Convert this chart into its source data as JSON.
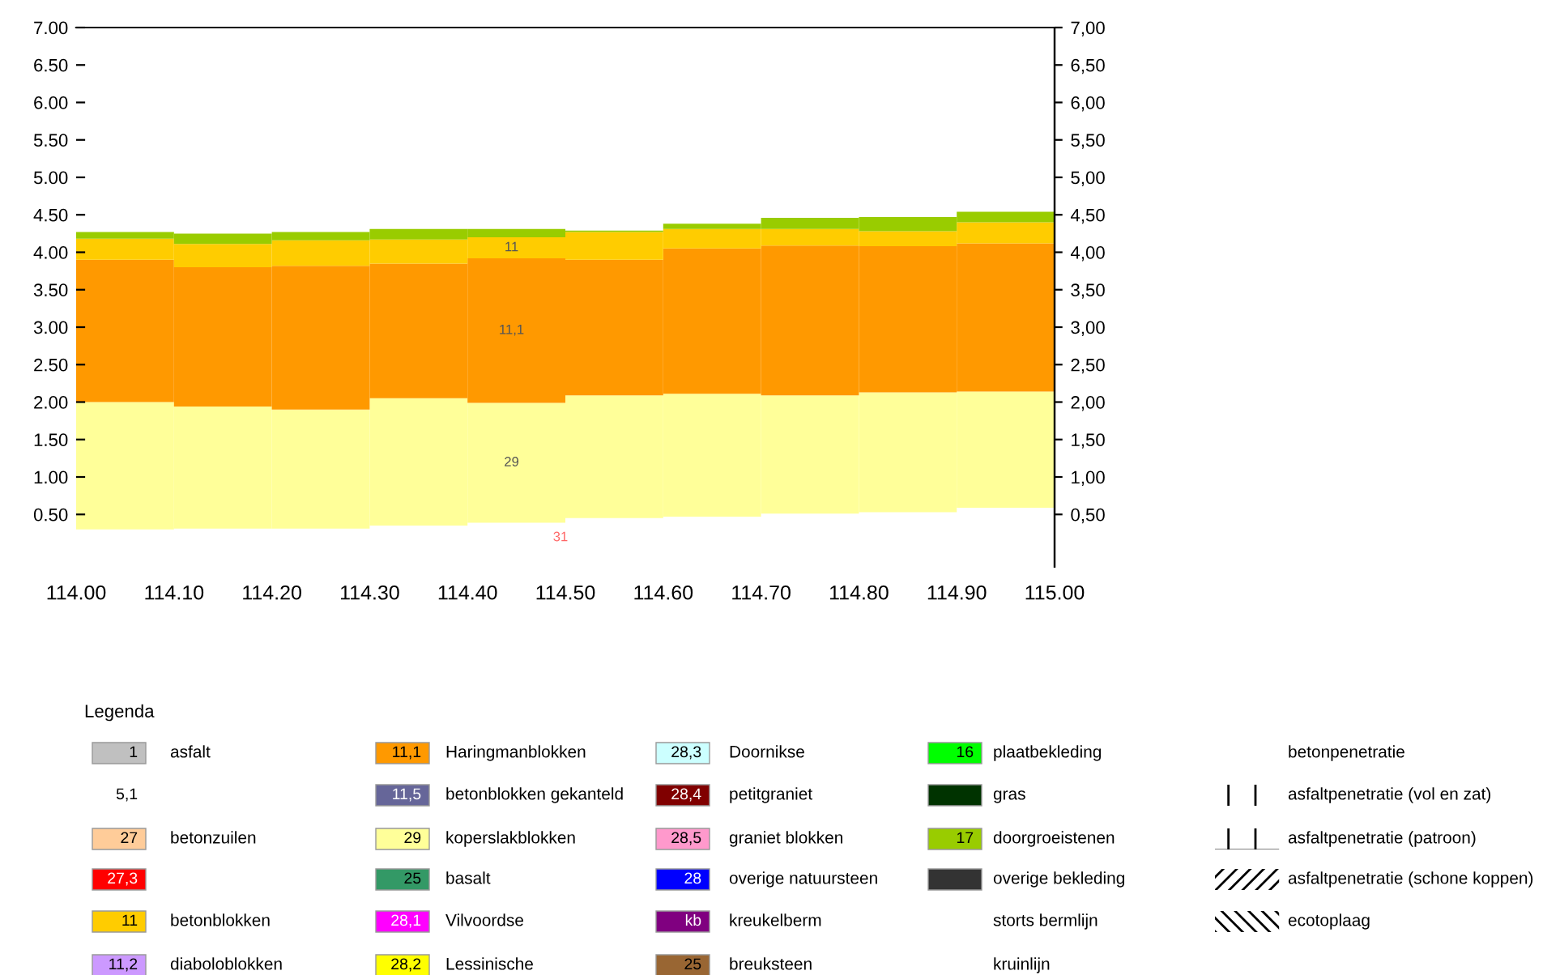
{
  "chart_data": {
    "type": "bar",
    "legend_title": "Legenda",
    "x": [
      114.05,
      114.15,
      114.25,
      114.35,
      114.45,
      114.55,
      114.65,
      114.75,
      114.85,
      114.95
    ],
    "xlim": [
      114.0,
      115.0
    ],
    "xticks": [
      {
        "value": 114.0,
        "label": "114.00"
      },
      {
        "value": 114.1,
        "label": "114.10"
      },
      {
        "value": 114.2,
        "label": "114.20"
      },
      {
        "value": 114.3,
        "label": "114.30"
      },
      {
        "value": 114.4,
        "label": "114.40"
      },
      {
        "value": 114.5,
        "label": "114.50"
      },
      {
        "value": 114.6,
        "label": "114.60"
      },
      {
        "value": 114.7,
        "label": "114.70"
      },
      {
        "value": 114.8,
        "label": "114.80"
      },
      {
        "value": 114.9,
        "label": "114.90"
      },
      {
        "value": 115.0,
        "label": "115.00"
      }
    ],
    "ylim": [
      -0.2,
      7.0
    ],
    "yticks": [
      {
        "value": 0.5,
        "label": "0.50"
      },
      {
        "value": 1.0,
        "label": "1.00"
      },
      {
        "value": 1.5,
        "label": "1.50"
      },
      {
        "value": 2.0,
        "label": "2.00"
      },
      {
        "value": 2.5,
        "label": "2.50"
      },
      {
        "value": 3.0,
        "label": "3.00"
      },
      {
        "value": 3.5,
        "label": "3.50"
      },
      {
        "value": 4.0,
        "label": "4.00"
      },
      {
        "value": 4.5,
        "label": "4.50"
      },
      {
        "value": 5.0,
        "label": "5.00"
      },
      {
        "value": 5.5,
        "label": "5.50"
      },
      {
        "value": 6.0,
        "label": "6.00"
      },
      {
        "value": 6.5,
        "label": "6.50"
      },
      {
        "value": 7.0,
        "label": "7.00"
      }
    ],
    "y2lim": [
      -0.2,
      7.0
    ],
    "y2ticks": [
      {
        "value": 0.5,
        "label": "0,50"
      },
      {
        "value": 1.0,
        "label": "1,00"
      },
      {
        "value": 1.5,
        "label": "1,50"
      },
      {
        "value": 2.0,
        "label": "2,00"
      },
      {
        "value": 2.5,
        "label": "2,50"
      },
      {
        "value": 3.0,
        "label": "3,00"
      },
      {
        "value": 3.5,
        "label": "3,50"
      },
      {
        "value": 4.0,
        "label": "4,00"
      },
      {
        "value": 4.5,
        "label": "4,50"
      },
      {
        "value": 5.0,
        "label": "5,00"
      },
      {
        "value": 5.5,
        "label": "5,50"
      },
      {
        "value": 6.0,
        "label": "6,00"
      },
      {
        "value": 6.5,
        "label": "6,50"
      },
      {
        "value": 7.0,
        "label": "7,00"
      }
    ],
    "grid": false,
    "legend": "bottom",
    "annotations": [
      "29",
      "11,1",
      "11",
      "31",
      "1",
      "asfalt",
      "5,1",
      "27",
      "betonzuilen",
      "27,3",
      "11",
      "11,2",
      "diaboloblokken",
      "11,1",
      "11,5",
      "betonblokken gekanteld",
      "29",
      "25",
      "basalt",
      "28,1",
      "Vilvoordse",
      "28,2",
      "Lessinische",
      "28,3",
      "Doornikse",
      "28,4",
      "petitgraniet",
      "28,5",
      "graniet blokken",
      "28",
      "overige natuursteen",
      "kb",
      "kreukelberm",
      "25",
      "breuksteen",
      "16",
      "plaatbekleding",
      "gras",
      "17",
      "overige bekleding",
      "storts bermlijn",
      "kruinlijn",
      "betonpenetratie",
      "asfaltpenetratie (vol en zat)",
      "asfaltpenetratie (patroon)",
      "asfaltpenetratie (schone koppen)",
      "ecotoplaag"
    ],
    "series": [
      {
        "name": "koperslakblokken",
        "color": "#ffff99",
        "base": [
          0.3,
          0.31,
          0.31,
          0.35,
          0.39,
          0.45,
          0.47,
          0.51,
          0.53,
          0.59
        ],
        "values": [
          1.7,
          1.63,
          1.59,
          1.7,
          1.6,
          1.64,
          1.64,
          1.58,
          1.6,
          1.55
        ]
      },
      {
        "name": "Haringmanblokken",
        "color": "#ff9900",
        "base": [
          2.0,
          1.94,
          1.9,
          2.05,
          1.99,
          2.09,
          2.11,
          2.09,
          2.13,
          2.14
        ],
        "values": [
          1.9,
          1.86,
          1.92,
          1.8,
          1.93,
          1.81,
          1.94,
          2.0,
          1.95,
          1.98
        ]
      },
      {
        "name": "betonblokken",
        "color": "#ffcc00",
        "base": [
          3.9,
          3.8,
          3.82,
          3.85,
          3.92,
          3.9,
          4.05,
          4.09,
          4.08,
          4.12
        ],
        "values": [
          0.28,
          0.31,
          0.34,
          0.32,
          0.28,
          0.37,
          0.26,
          0.22,
          0.2,
          0.28
        ]
      },
      {
        "name": "doorgroeistenen",
        "color": "#99cc00",
        "base": [
          4.18,
          4.11,
          4.16,
          4.17,
          4.2,
          4.27,
          4.31,
          4.31,
          4.28,
          4.4
        ],
        "values": [
          0.09,
          0.14,
          0.11,
          0.14,
          0.11,
          0.02,
          0.07,
          0.15,
          0.19,
          0.14
        ]
      }
    ]
  }
}
